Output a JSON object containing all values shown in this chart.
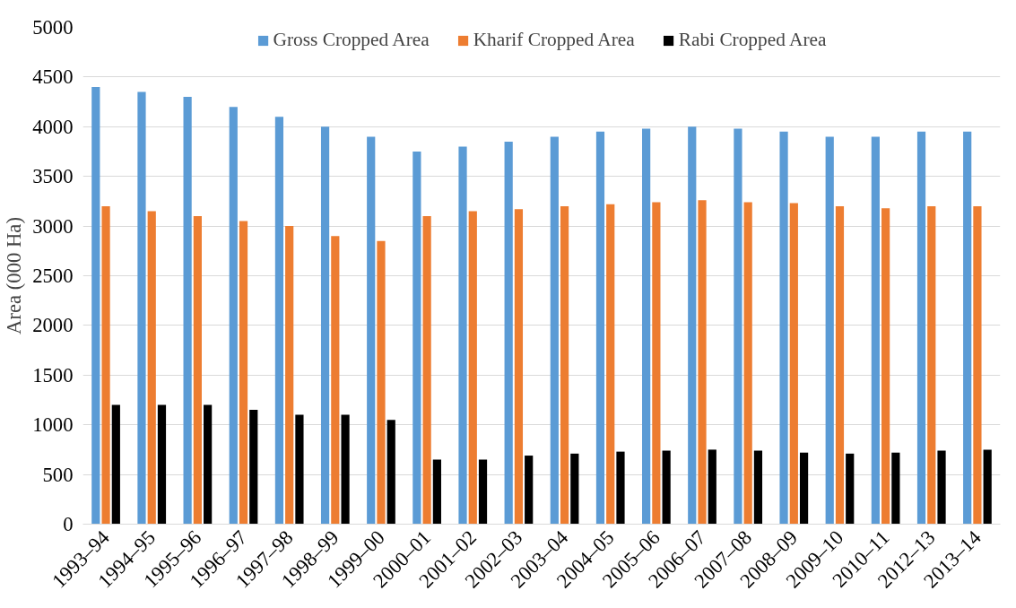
{
  "chart_data": {
    "type": "bar",
    "ylabel": "Area (000 Ha)",
    "categories": [
      "1993–94",
      "1994–95",
      "1995–96",
      "1996–97",
      "1997–98",
      "1998–99",
      "1999–00",
      "2000–01",
      "2001–02",
      "2002–03",
      "2003–04",
      "2004–05",
      "2005–06",
      "2006–07",
      "2007–08",
      "2008–09",
      "2009–10",
      "2010–11",
      "2012–13",
      "2013–14"
    ],
    "series": [
      {
        "name": "Gross Cropped Area",
        "color": "#5b9bd5",
        "values": [
          4400,
          4350,
          4300,
          4200,
          4100,
          4000,
          3900,
          3750,
          3800,
          3850,
          3900,
          3950,
          3980,
          4000,
          3980,
          3950,
          3900,
          3900,
          3950,
          3950
        ]
      },
      {
        "name": "Kharif Cropped Area",
        "color": "#ed7d31",
        "values": [
          3200,
          3150,
          3100,
          3050,
          3000,
          2900,
          2850,
          3100,
          3150,
          3170,
          3200,
          3220,
          3240,
          3260,
          3240,
          3230,
          3200,
          3180,
          3200,
          3200
        ]
      },
      {
        "name": "Rabi Cropped Area",
        "color": "#000000",
        "values": [
          1200,
          1200,
          1200,
          1150,
          1100,
          1100,
          1050,
          650,
          650,
          690,
          710,
          730,
          740,
          750,
          740,
          720,
          710,
          720,
          740,
          750
        ]
      }
    ],
    "ylim": [
      0,
      5000
    ],
    "yticks": [
      0,
      500,
      1000,
      1500,
      2000,
      2500,
      3000,
      3500,
      4000,
      4500,
      5000
    ],
    "grid": "y",
    "legend": "top"
  }
}
